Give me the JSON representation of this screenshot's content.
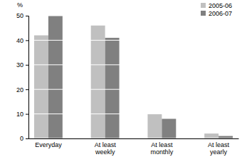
{
  "chart_data": {
    "type": "bar",
    "y_label": "%",
    "categories": [
      "Everyday",
      "At least weekly",
      "At least monthly",
      "At least yearly"
    ],
    "series": [
      {
        "name": "2005-06",
        "color": "#c0c0c0",
        "values": [
          42,
          46,
          10,
          2
        ]
      },
      {
        "name": "2006-07",
        "color": "#808080",
        "values": [
          50,
          41,
          8,
          1
        ]
      }
    ],
    "ylim": [
      0,
      50
    ],
    "yticks": [
      0,
      10,
      20,
      30,
      40,
      50
    ],
    "grid": true,
    "legend": "upper right"
  }
}
